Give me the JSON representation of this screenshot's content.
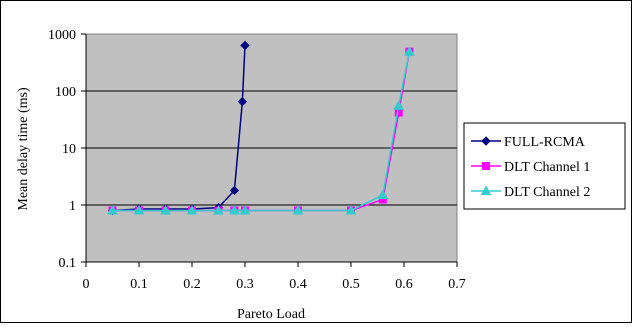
{
  "chart_data": {
    "type": "line",
    "title": "",
    "xlabel": "Pareto Load",
    "ylabel": "Mean delay time (ms)",
    "xlim": [
      0,
      0.7
    ],
    "ylim": [
      0.1,
      1000
    ],
    "yscale": "log",
    "x_ticks": [
      0,
      0.1,
      0.2,
      0.3,
      0.4,
      0.5,
      0.6,
      0.7
    ],
    "x_tick_labels": [
      "0",
      "0.1",
      "0.2",
      "0.3",
      "0.4",
      "0.5",
      "0.6",
      "0.7"
    ],
    "y_ticks": [
      0.1,
      1,
      10,
      100,
      1000
    ],
    "y_tick_labels": [
      "0.1",
      "1",
      "10",
      "100",
      "1000"
    ],
    "grid": "horizontal major gridlines",
    "plot_background": "#C0C0C0",
    "legend_position": "right",
    "series": [
      {
        "name": "FULL-RCMA",
        "color": "#000080",
        "marker": "diamond",
        "x": [
          0.05,
          0.1,
          0.15,
          0.2,
          0.25,
          0.28,
          0.295,
          0.3
        ],
        "y": [
          0.8,
          0.85,
          0.85,
          0.85,
          0.9,
          1.8,
          65,
          630
        ]
      },
      {
        "name": "DLT Channel 1",
        "color": "#FF00FF",
        "marker": "square",
        "x": [
          0.05,
          0.1,
          0.15,
          0.2,
          0.25,
          0.28,
          0.3,
          0.4,
          0.5,
          0.56,
          0.59,
          0.61
        ],
        "y": [
          0.8,
          0.8,
          0.8,
          0.8,
          0.8,
          0.8,
          0.8,
          0.8,
          0.8,
          1.25,
          42,
          490
        ]
      },
      {
        "name": "DLT Channel 2",
        "color": "#33CCCC",
        "marker": "triangle",
        "x": [
          0.05,
          0.1,
          0.15,
          0.2,
          0.25,
          0.28,
          0.3,
          0.4,
          0.5,
          0.56,
          0.59,
          0.61
        ],
        "y": [
          0.8,
          0.8,
          0.8,
          0.8,
          0.8,
          0.8,
          0.8,
          0.8,
          0.8,
          1.5,
          55,
          490
        ]
      }
    ]
  }
}
